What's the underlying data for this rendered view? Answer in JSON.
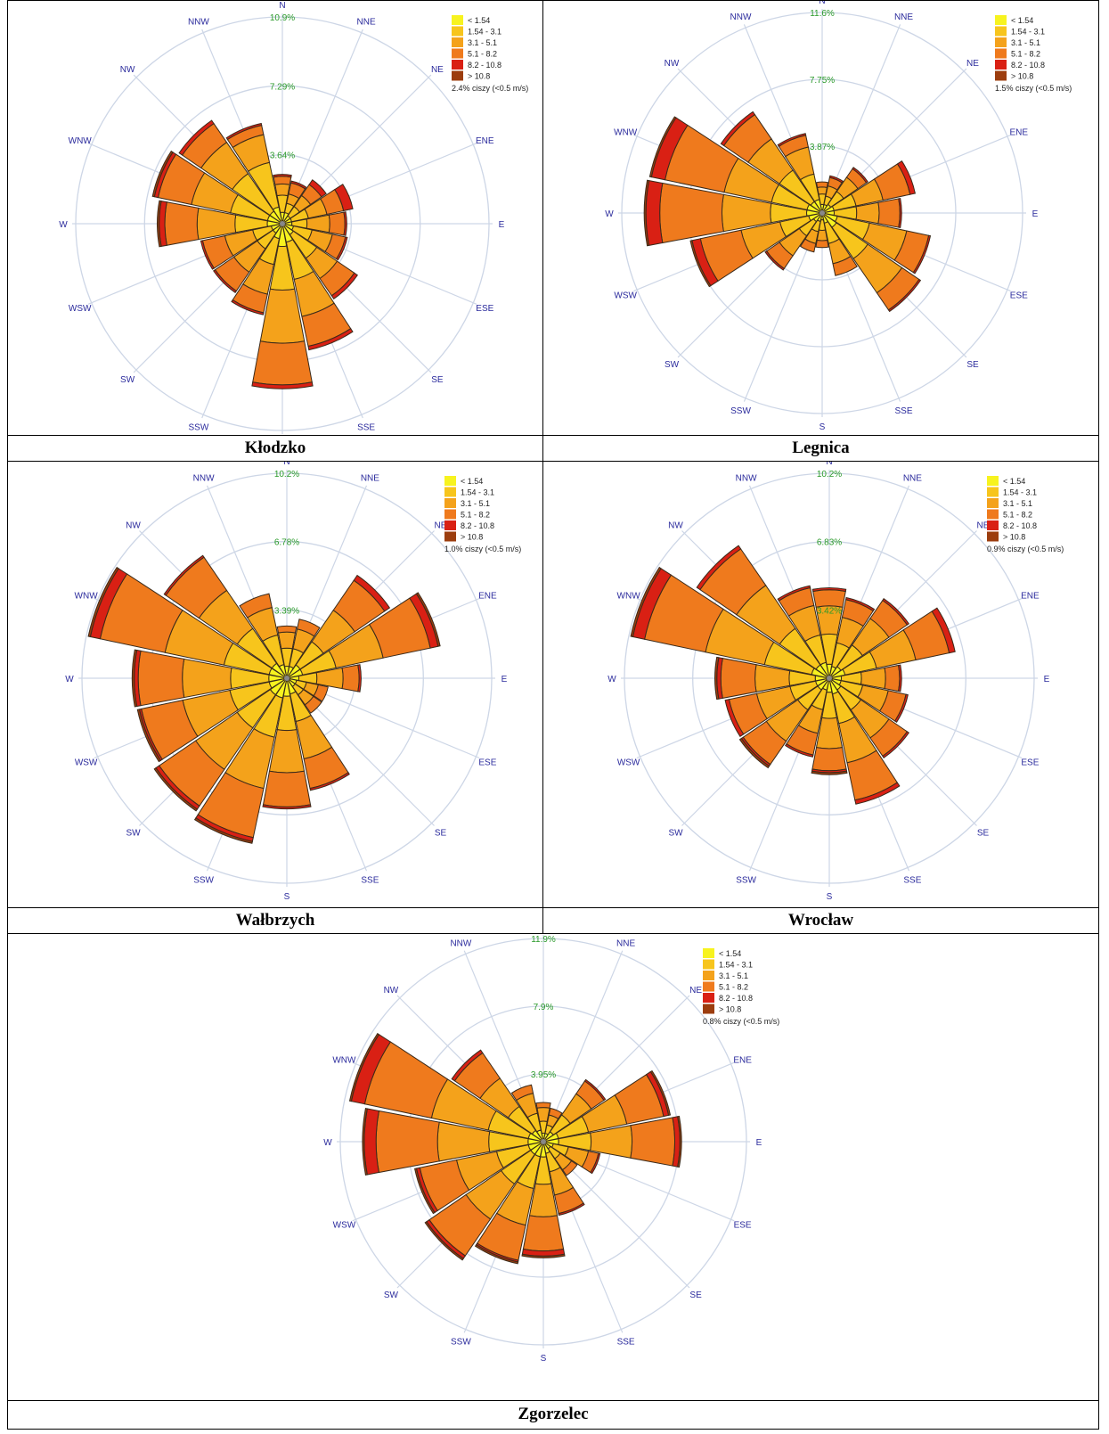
{
  "legend": {
    "bins": [
      "< 1.54",
      "1.54 - 3.1",
      "3.1 - 5.1",
      "5.1 - 8.2",
      "8.2 - 10.8",
      "> 10.8"
    ],
    "colors": [
      "#f7f31f",
      "#f7c51c",
      "#f4a21b",
      "#ef7a1d",
      "#d92014",
      "#9c3d0e"
    ]
  },
  "directions": [
    "N",
    "NNE",
    "NE",
    "ENE",
    "E",
    "ESE",
    "SE",
    "SSE",
    "S",
    "SSW",
    "SW",
    "WSW",
    "W",
    "WNW",
    "NW",
    "NNW"
  ],
  "chart_data": [
    {
      "type": "wind_rose",
      "station": "Kłodzko",
      "calm_note": "2.4% ciszy (<0.5 m/s)",
      "ring_labels": [
        "3.64%",
        "7.29%",
        "10.9%"
      ],
      "rmax": 10.9,
      "sectors": [
        [
          0.6,
          1.5,
          2.1,
          2.5,
          2.6,
          2.6
        ],
        [
          0.6,
          1.1,
          1.6,
          2.2,
          2.3,
          2.3
        ],
        [
          0.5,
          1.1,
          1.8,
          2.5,
          2.8,
          2.8
        ],
        [
          0.5,
          1.4,
          2.4,
          3.3,
          3.8,
          3.8
        ],
        [
          0.5,
          1.3,
          2.5,
          3.3,
          3.4,
          3.4
        ],
        [
          0.6,
          1.6,
          2.7,
          3.4,
          3.5,
          3.5
        ],
        [
          0.7,
          2.2,
          3.5,
          4.6,
          4.8,
          4.8
        ],
        [
          1.0,
          3.0,
          5.0,
          6.6,
          6.8,
          6.8
        ],
        [
          1.2,
          3.5,
          6.3,
          8.5,
          8.7,
          8.7
        ],
        [
          0.8,
          2.2,
          3.8,
          4.8,
          4.9,
          4.9
        ],
        [
          0.6,
          1.6,
          3.1,
          4.3,
          4.4,
          4.4
        ],
        [
          0.6,
          1.6,
          3.1,
          4.3,
          4.4,
          4.4
        ],
        [
          0.8,
          2.5,
          4.5,
          6.2,
          6.5,
          6.6
        ],
        [
          0.8,
          2.8,
          4.9,
          6.7,
          6.9,
          7.0
        ],
        [
          0.8,
          3.2,
          5.2,
          6.4,
          6.6,
          6.6
        ],
        [
          0.9,
          3.3,
          4.8,
          5.3,
          5.4,
          5.4
        ]
      ]
    },
    {
      "type": "wind_rose",
      "station": "Legnica",
      "calm_note": "1.5% ciszy (<0.5 m/s)",
      "ring_labels": [
        "3.87%",
        "7.75%",
        "11.6%"
      ],
      "rmax": 11.6,
      "sectors": [
        [
          0.5,
          1.1,
          1.5,
          1.8,
          1.8,
          1.8
        ],
        [
          0.5,
          1.0,
          1.6,
          2.1,
          2.2,
          2.2
        ],
        [
          0.6,
          1.5,
          2.5,
          3.1,
          3.2,
          3.2
        ],
        [
          0.7,
          2.0,
          3.6,
          5.2,
          5.5,
          5.5
        ],
        [
          0.7,
          2.0,
          3.3,
          4.5,
          4.6,
          4.6
        ],
        [
          0.9,
          2.8,
          5.0,
          6.3,
          6.4,
          6.4
        ],
        [
          1.0,
          3.2,
          5.6,
          6.8,
          6.9,
          6.9
        ],
        [
          0.6,
          1.8,
          3.0,
          3.7,
          3.7,
          3.7
        ],
        [
          0.4,
          1.0,
          1.6,
          2.0,
          2.0,
          2.0
        ],
        [
          0.5,
          1.1,
          1.8,
          2.3,
          2.3,
          2.3
        ],
        [
          0.6,
          1.6,
          3.0,
          3.9,
          4.0,
          4.0
        ],
        [
          0.8,
          2.5,
          4.8,
          7.2,
          7.7,
          7.8
        ],
        [
          0.9,
          3.0,
          5.8,
          9.4,
          10.2,
          10.3
        ],
        [
          0.9,
          3.0,
          5.8,
          9.3,
          10.1,
          10.2
        ],
        [
          0.8,
          3.0,
          5.2,
          6.9,
          7.1,
          7.1
        ],
        [
          0.8,
          2.3,
          3.9,
          4.6,
          4.7,
          4.7
        ]
      ]
    },
    {
      "type": "wind_rose",
      "station": "Wałbrzych",
      "calm_note": "1.0% ciszy (<0.5 m/s)",
      "ring_labels": [
        "3.39%",
        "6.78%",
        "10.2%"
      ],
      "rmax": 10.2,
      "sectors": [
        [
          0.6,
          1.5,
          2.3,
          2.6,
          2.6,
          2.6
        ],
        [
          0.6,
          1.5,
          2.5,
          3.0,
          3.0,
          3.0
        ],
        [
          0.8,
          2.2,
          4.1,
          5.9,
          6.2,
          6.2
        ],
        [
          0.8,
          2.5,
          4.9,
          7.3,
          7.7,
          7.8
        ],
        [
          0.6,
          1.5,
          2.8,
          3.6,
          3.7,
          3.7
        ],
        [
          0.5,
          1.0,
          1.6,
          2.1,
          2.1,
          2.1
        ],
        [
          0.5,
          1.0,
          1.6,
          2.1,
          2.1,
          2.1
        ],
        [
          0.8,
          2.2,
          4.1,
          5.6,
          5.7,
          5.7
        ],
        [
          0.9,
          2.6,
          4.7,
          6.4,
          6.5,
          6.5
        ],
        [
          1.0,
          3.0,
          5.6,
          8.1,
          8.3,
          8.4
        ],
        [
          1.0,
          3.0,
          5.5,
          7.7,
          7.9,
          8.0
        ],
        [
          0.9,
          2.9,
          5.3,
          7.4,
          7.5,
          7.6
        ],
        [
          0.9,
          2.8,
          5.2,
          7.4,
          7.6,
          7.7
        ],
        [
          0.9,
          3.2,
          6.2,
          9.5,
          10.0,
          10.1
        ],
        [
          0.9,
          3.0,
          5.3,
          7.3,
          7.4,
          7.4
        ],
        [
          0.7,
          2.2,
          3.6,
          4.3,
          4.3,
          4.3
        ]
      ]
    },
    {
      "type": "wind_rose",
      "station": "Wrocław",
      "calm_note": "0.9% ciszy (<0.5 m/s)",
      "ring_labels": [
        "3.42%",
        "6.83%",
        "10.2%"
      ],
      "rmax": 10.2,
      "sectors": [
        [
          0.7,
          2.2,
          3.6,
          4.4,
          4.5,
          4.5
        ],
        [
          0.6,
          1.8,
          3.1,
          4.0,
          4.1,
          4.1
        ],
        [
          0.7,
          2.0,
          3.6,
          4.7,
          4.8,
          4.8
        ],
        [
          0.8,
          2.4,
          4.4,
          6.1,
          6.4,
          6.4
        ],
        [
          0.6,
          1.6,
          2.8,
          3.5,
          3.6,
          3.6
        ],
        [
          0.6,
          1.7,
          3.0,
          3.9,
          4.0,
          4.0
        ],
        [
          0.7,
          1.9,
          3.6,
          4.7,
          4.8,
          4.8
        ],
        [
          0.8,
          2.3,
          4.3,
          6.2,
          6.4,
          6.4
        ],
        [
          0.7,
          2.0,
          3.5,
          4.6,
          4.7,
          4.8
        ],
        [
          0.6,
          1.6,
          2.8,
          3.9,
          4.0,
          4.0
        ],
        [
          0.7,
          1.9,
          3.8,
          5.2,
          5.3,
          5.4
        ],
        [
          0.7,
          2.0,
          3.7,
          5.1,
          5.3,
          5.3
        ],
        [
          0.7,
          2.0,
          3.7,
          5.4,
          5.6,
          5.7
        ],
        [
          0.9,
          3.3,
          6.3,
          9.4,
          10.0,
          10.1
        ],
        [
          0.8,
          3.0,
          5.6,
          7.8,
          8.0,
          8.0
        ],
        [
          0.8,
          2.2,
          3.7,
          4.6,
          4.7,
          4.7
        ]
      ]
    },
    {
      "type": "wind_rose",
      "station": "Zgorzelec",
      "calm_note": "0.8% ciszy (<0.5 m/s)",
      "ring_labels": [
        "3.95%",
        "7.9%",
        "11.9%"
      ],
      "rmax": 11.9,
      "sectors": [
        [
          0.5,
          1.2,
          2.0,
          2.3,
          2.3,
          2.3
        ],
        [
          0.5,
          1.0,
          1.6,
          2.0,
          2.0,
          2.0
        ],
        [
          0.7,
          1.9,
          3.4,
          4.3,
          4.4,
          4.4
        ],
        [
          0.9,
          2.7,
          5.0,
          7.2,
          7.5,
          7.6
        ],
        [
          0.9,
          2.8,
          5.2,
          7.7,
          8.0,
          8.1
        ],
        [
          0.6,
          1.5,
          2.7,
          3.3,
          3.4,
          3.4
        ],
        [
          0.5,
          1.2,
          2.0,
          2.4,
          2.4,
          2.4
        ],
        [
          0.7,
          1.8,
          3.2,
          4.3,
          4.4,
          4.4
        ],
        [
          0.9,
          2.5,
          4.4,
          6.4,
          6.7,
          6.8
        ],
        [
          0.9,
          2.8,
          5.0,
          7.1,
          7.2,
          7.3
        ],
        [
          0.9,
          3.0,
          5.5,
          8.1,
          8.3,
          8.4
        ],
        [
          0.9,
          2.8,
          5.2,
          7.4,
          7.6,
          7.7
        ],
        [
          0.9,
          3.2,
          6.2,
          9.8,
          10.5,
          10.6
        ],
        [
          0.9,
          3.3,
          6.7,
          10.7,
          11.5,
          11.6
        ],
        [
          0.8,
          2.5,
          4.5,
          6.3,
          6.5,
          6.5
        ],
        [
          0.7,
          1.7,
          2.9,
          3.4,
          3.4,
          3.4
        ]
      ]
    }
  ]
}
